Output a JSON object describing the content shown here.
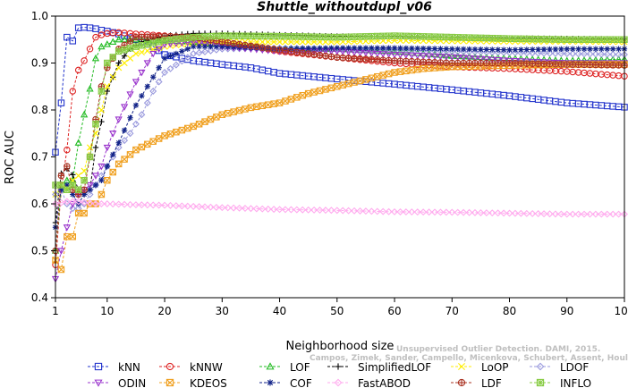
{
  "chart_data": {
    "type": "line",
    "title": "Shuttle_withoutdupl_v06",
    "xlabel": "Neighborhood size",
    "ylabel": "ROC AUC",
    "xlim": [
      1,
      100
    ],
    "ylim": [
      0.4,
      1.0
    ],
    "x_ticks": [
      1,
      10,
      20,
      30,
      40,
      50,
      60,
      70,
      80,
      90,
      100
    ],
    "y_ticks": [
      0.4,
      0.5,
      0.6,
      0.7,
      0.8,
      0.9,
      1.0
    ],
    "legend_position": "bottom",
    "series": [
      {
        "name": "kNN",
        "color": "#2233cc",
        "marker": "square",
        "points": [
          [
            1,
            0.71
          ],
          [
            2,
            0.815
          ],
          [
            3,
            0.955
          ],
          [
            4,
            0.947
          ],
          [
            5,
            0.975
          ],
          [
            6,
            0.976
          ],
          [
            7,
            0.975
          ],
          [
            8,
            0.973
          ],
          [
            9,
            0.97
          ],
          [
            10,
            0.968
          ],
          [
            12,
            0.962
          ],
          [
            15,
            0.95
          ],
          [
            18,
            0.935
          ],
          [
            20,
            0.918
          ],
          [
            25,
            0.905
          ],
          [
            30,
            0.897
          ],
          [
            35,
            0.89
          ],
          [
            40,
            0.878
          ],
          [
            50,
            0.866
          ],
          [
            60,
            0.855
          ],
          [
            70,
            0.843
          ],
          [
            80,
            0.83
          ],
          [
            90,
            0.815
          ],
          [
            100,
            0.806
          ]
        ]
      },
      {
        "name": "kNNW",
        "color": "#dd2222",
        "marker": "circle",
        "points": [
          [
            1,
            0.47
          ],
          [
            2,
            0.63
          ],
          [
            3,
            0.715
          ],
          [
            4,
            0.84
          ],
          [
            5,
            0.885
          ],
          [
            6,
            0.905
          ],
          [
            7,
            0.93
          ],
          [
            8,
            0.955
          ],
          [
            9,
            0.96
          ],
          [
            10,
            0.963
          ],
          [
            12,
            0.965
          ],
          [
            15,
            0.962
          ],
          [
            20,
            0.958
          ],
          [
            25,
            0.953
          ],
          [
            30,
            0.945
          ],
          [
            40,
            0.925
          ],
          [
            50,
            0.912
          ],
          [
            60,
            0.9
          ],
          [
            70,
            0.892
          ],
          [
            80,
            0.888
          ],
          [
            90,
            0.882
          ],
          [
            100,
            0.872
          ]
        ]
      },
      {
        "name": "LOF",
        "color": "#22bb22",
        "marker": "triangle-up",
        "points": [
          [
            1,
            0.5
          ],
          [
            2,
            0.63
          ],
          [
            3,
            0.65
          ],
          [
            4,
            0.65
          ],
          [
            5,
            0.73
          ],
          [
            6,
            0.79
          ],
          [
            7,
            0.845
          ],
          [
            8,
            0.91
          ],
          [
            9,
            0.935
          ],
          [
            10,
            0.94
          ],
          [
            12,
            0.95
          ],
          [
            15,
            0.95
          ],
          [
            20,
            0.948
          ],
          [
            25,
            0.945
          ],
          [
            30,
            0.94
          ],
          [
            40,
            0.93
          ],
          [
            50,
            0.93
          ],
          [
            60,
            0.925
          ],
          [
            70,
            0.915
          ],
          [
            80,
            0.91
          ],
          [
            90,
            0.905
          ],
          [
            100,
            0.908
          ]
        ]
      },
      {
        "name": "SimplifiedLOF",
        "color": "#000000",
        "marker": "plus",
        "points": [
          [
            1,
            0.56
          ],
          [
            2,
            0.665
          ],
          [
            3,
            0.675
          ],
          [
            4,
            0.662
          ],
          [
            5,
            0.63
          ],
          [
            6,
            0.62
          ],
          [
            7,
            0.63
          ],
          [
            8,
            0.72
          ],
          [
            9,
            0.775
          ],
          [
            10,
            0.84
          ],
          [
            11,
            0.87
          ],
          [
            12,
            0.9
          ],
          [
            14,
            0.93
          ],
          [
            16,
            0.945
          ],
          [
            20,
            0.958
          ],
          [
            25,
            0.963
          ],
          [
            30,
            0.963
          ],
          [
            40,
            0.96
          ],
          [
            50,
            0.957
          ],
          [
            60,
            0.957
          ],
          [
            70,
            0.955
          ],
          [
            80,
            0.953
          ],
          [
            90,
            0.952
          ],
          [
            100,
            0.951
          ]
        ]
      },
      {
        "name": "LoOP",
        "color": "#ffee00",
        "marker": "cross",
        "points": [
          [
            1,
            0.62
          ],
          [
            2,
            0.64
          ],
          [
            3,
            0.635
          ],
          [
            4,
            0.65
          ],
          [
            5,
            0.66
          ],
          [
            6,
            0.67
          ],
          [
            7,
            0.72
          ],
          [
            8,
            0.75
          ],
          [
            9,
            0.8
          ],
          [
            10,
            0.85
          ],
          [
            12,
            0.89
          ],
          [
            15,
            0.92
          ],
          [
            20,
            0.935
          ],
          [
            25,
            0.943
          ],
          [
            30,
            0.945
          ],
          [
            40,
            0.945
          ],
          [
            50,
            0.945
          ],
          [
            60,
            0.948
          ],
          [
            70,
            0.947
          ],
          [
            80,
            0.946
          ],
          [
            90,
            0.946
          ],
          [
            100,
            0.945
          ]
        ]
      },
      {
        "name": "LDOF",
        "color": "#9999dd",
        "marker": "diamond",
        "points": [
          [
            1,
            0.62
          ],
          [
            2,
            0.63
          ],
          [
            3,
            0.6
          ],
          [
            4,
            0.59
          ],
          [
            5,
            0.59
          ],
          [
            6,
            0.6
          ],
          [
            7,
            0.62
          ],
          [
            8,
            0.64
          ],
          [
            9,
            0.66
          ],
          [
            10,
            0.68
          ],
          [
            12,
            0.72
          ],
          [
            14,
            0.75
          ],
          [
            16,
            0.79
          ],
          [
            18,
            0.84
          ],
          [
            20,
            0.88
          ],
          [
            25,
            0.92
          ],
          [
            30,
            0.93
          ],
          [
            40,
            0.932
          ],
          [
            50,
            0.93
          ],
          [
            60,
            0.928
          ],
          [
            70,
            0.925
          ],
          [
            80,
            0.922
          ],
          [
            90,
            0.92
          ],
          [
            100,
            0.918
          ]
        ]
      },
      {
        "name": "ODIN",
        "color": "#9933cc",
        "marker": "triangle-down",
        "points": [
          [
            1,
            0.44
          ],
          [
            2,
            0.5
          ],
          [
            3,
            0.55
          ],
          [
            4,
            0.6
          ],
          [
            5,
            0.62
          ],
          [
            6,
            0.63
          ],
          [
            7,
            0.64
          ],
          [
            8,
            0.66
          ],
          [
            9,
            0.68
          ],
          [
            10,
            0.72
          ],
          [
            12,
            0.78
          ],
          [
            15,
            0.86
          ],
          [
            18,
            0.92
          ],
          [
            20,
            0.94
          ],
          [
            25,
            0.945
          ],
          [
            30,
            0.935
          ],
          [
            40,
            0.925
          ],
          [
            50,
            0.925
          ],
          [
            60,
            0.918
          ],
          [
            70,
            0.913
          ],
          [
            80,
            0.905
          ],
          [
            90,
            0.9
          ],
          [
            100,
            0.9
          ]
        ]
      },
      {
        "name": "KDEOS",
        "color": "#f0a020",
        "marker": "square-x",
        "points": [
          [
            1,
            0.48
          ],
          [
            2,
            0.46
          ],
          [
            3,
            0.53
          ],
          [
            4,
            0.53
          ],
          [
            5,
            0.58
          ],
          [
            6,
            0.58
          ],
          [
            7,
            0.6
          ],
          [
            8,
            0.6
          ],
          [
            9,
            0.62
          ],
          [
            10,
            0.65
          ],
          [
            12,
            0.685
          ],
          [
            15,
            0.715
          ],
          [
            20,
            0.745
          ],
          [
            25,
            0.765
          ],
          [
            30,
            0.79
          ],
          [
            35,
            0.805
          ],
          [
            40,
            0.815
          ],
          [
            45,
            0.835
          ],
          [
            50,
            0.85
          ],
          [
            55,
            0.865
          ],
          [
            60,
            0.88
          ],
          [
            65,
            0.888
          ],
          [
            70,
            0.892
          ],
          [
            80,
            0.895
          ],
          [
            90,
            0.897
          ],
          [
            100,
            0.897
          ]
        ]
      },
      {
        "name": "COF",
        "color": "#112288",
        "marker": "asterisk",
        "points": [
          [
            1,
            0.55
          ],
          [
            2,
            0.63
          ],
          [
            3,
            0.64
          ],
          [
            4,
            0.62
          ],
          [
            5,
            0.6
          ],
          [
            6,
            0.62
          ],
          [
            7,
            0.63
          ],
          [
            8,
            0.64
          ],
          [
            9,
            0.65
          ],
          [
            10,
            0.68
          ],
          [
            12,
            0.73
          ],
          [
            15,
            0.81
          ],
          [
            18,
            0.87
          ],
          [
            20,
            0.91
          ],
          [
            25,
            0.935
          ],
          [
            30,
            0.935
          ],
          [
            40,
            0.93
          ],
          [
            50,
            0.932
          ],
          [
            60,
            0.932
          ],
          [
            70,
            0.93
          ],
          [
            80,
            0.928
          ],
          [
            90,
            0.93
          ],
          [
            100,
            0.93
          ]
        ]
      },
      {
        "name": "FastABOD",
        "color": "#ffaaee",
        "marker": "diamond",
        "points": [
          [
            1,
            0.6
          ],
          [
            3,
            0.605
          ],
          [
            5,
            0.605
          ],
          [
            8,
            0.6
          ],
          [
            10,
            0.6
          ],
          [
            15,
            0.598
          ],
          [
            20,
            0.597
          ],
          [
            30,
            0.592
          ],
          [
            40,
            0.588
          ],
          [
            50,
            0.586
          ],
          [
            60,
            0.583
          ],
          [
            70,
            0.582
          ],
          [
            80,
            0.58
          ],
          [
            90,
            0.578
          ],
          [
            100,
            0.578
          ]
        ]
      },
      {
        "name": "LDF",
        "color": "#aa3322",
        "marker": "circle-plus",
        "points": [
          [
            1,
            0.5
          ],
          [
            2,
            0.66
          ],
          [
            3,
            0.68
          ],
          [
            4,
            0.63
          ],
          [
            5,
            0.62
          ],
          [
            6,
            0.63
          ],
          [
            7,
            0.7
          ],
          [
            8,
            0.78
          ],
          [
            9,
            0.85
          ],
          [
            10,
            0.89
          ],
          [
            12,
            0.93
          ],
          [
            15,
            0.955
          ],
          [
            20,
            0.957
          ],
          [
            25,
            0.955
          ],
          [
            30,
            0.945
          ],
          [
            40,
            0.928
          ],
          [
            50,
            0.912
          ],
          [
            60,
            0.905
          ],
          [
            70,
            0.9
          ],
          [
            80,
            0.9
          ],
          [
            90,
            0.897
          ],
          [
            100,
            0.895
          ]
        ]
      },
      {
        "name": "INFLO",
        "color": "#88cc44",
        "marker": "square-star",
        "points": [
          [
            1,
            0.64
          ],
          [
            2,
            0.64
          ],
          [
            3,
            0.63
          ],
          [
            4,
            0.64
          ],
          [
            5,
            0.63
          ],
          [
            6,
            0.65
          ],
          [
            7,
            0.7
          ],
          [
            8,
            0.77
          ],
          [
            9,
            0.84
          ],
          [
            10,
            0.9
          ],
          [
            12,
            0.925
          ],
          [
            15,
            0.935
          ],
          [
            20,
            0.948
          ],
          [
            25,
            0.955
          ],
          [
            30,
            0.958
          ],
          [
            40,
            0.957
          ],
          [
            50,
            0.955
          ],
          [
            60,
            0.958
          ],
          [
            70,
            0.955
          ],
          [
            80,
            0.952
          ],
          [
            90,
            0.95
          ],
          [
            100,
            0.95
          ]
        ]
      }
    ]
  },
  "watermark": {
    "line1": "Unsupervised Outlier Detection. DAMI, 2015.",
    "line2": "Campos, Zimek, Sander, Campello, Micenkova, Schubert, Assent, Houle"
  }
}
